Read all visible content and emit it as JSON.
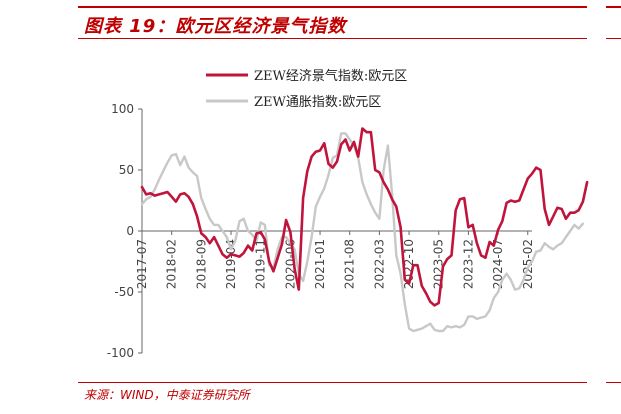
{
  "header": {
    "title": "图表 19：欧元区经济景气指数"
  },
  "footer": {
    "source": "来源：WIND，中泰证券研究所"
  },
  "colors": {
    "brand": "#c00000",
    "series_economic": "#c0143c",
    "series_inflation": "#c8c8c8"
  },
  "chart_data": {
    "type": "line",
    "title": "",
    "xlabel": "",
    "ylabel": "",
    "ylim": [
      -100,
      100
    ],
    "yticks": [
      100,
      50,
      0,
      -50,
      -100
    ],
    "xticks": [
      "2017-07",
      "2018-02",
      "2018-09",
      "2019-04",
      "2019-11",
      "2020-06",
      "2021-01",
      "2021-08",
      "2022-03",
      "2022-10",
      "2023-05",
      "2023-12",
      "2024-07",
      "2025-02"
    ],
    "x_start": "2017-07",
    "x_end": "2025-03",
    "grid": false,
    "legend": "top",
    "series": [
      {
        "name": "ZEW经济景气指数:欧元区",
        "color": "#c0143c",
        "values": [
          36,
          30,
          31,
          29,
          30,
          31,
          32,
          28,
          24,
          30,
          31,
          28,
          22,
          12,
          -2,
          -5,
          -10,
          -5,
          -12,
          -19,
          -22,
          -19,
          -20,
          -21,
          -18,
          -12,
          -16,
          -2,
          -1,
          -7,
          -25,
          -33,
          -22,
          -11,
          9,
          -1,
          -31,
          -48,
          27,
          49,
          61,
          65,
          66,
          72,
          55,
          52,
          57,
          71,
          75,
          66,
          73,
          61,
          84,
          81,
          81,
          50,
          48,
          40,
          34,
          26,
          20,
          3,
          -40,
          -43,
          -28,
          -28,
          -45,
          -51,
          -58,
          -61,
          -59,
          -29,
          -23,
          -20,
          17,
          26,
          27,
          3,
          5,
          -10,
          -20,
          -22,
          -9,
          -12,
          1,
          8,
          23,
          25,
          24,
          25,
          34,
          43,
          47,
          52,
          50,
          18,
          5,
          12,
          19,
          18,
          10,
          15,
          15,
          17,
          24,
          40
        ]
      },
      {
        "name": "ZEW通胀指数:欧元区",
        "color": "#c8c8c8",
        "values": [
          22,
          26,
          28,
          34,
          42,
          49,
          56,
          62,
          63,
          54,
          61,
          52,
          48,
          45,
          27,
          18,
          10,
          5,
          5,
          0,
          -5,
          -15,
          -8,
          8,
          10,
          0,
          -3,
          -8,
          7,
          5,
          -28,
          -30,
          -15,
          -5,
          -5,
          -10,
          -15,
          -35,
          -41,
          -25,
          -5,
          20,
          28,
          35,
          46,
          60,
          62,
          80,
          80,
          75,
          70,
          60,
          40,
          30,
          22,
          15,
          10,
          50,
          70,
          30,
          -20,
          -35,
          -60,
          -80,
          -82,
          -81,
          -80,
          -78,
          -76,
          -81,
          -82,
          -82,
          -78,
          -79,
          -78,
          -79,
          -77,
          -70,
          -70,
          -72,
          -71,
          -70,
          -65,
          -55,
          -50,
          -40,
          -35,
          -40,
          -48,
          -47,
          -40,
          -30,
          -25,
          -17,
          -16,
          -10,
          -13,
          -15,
          -12,
          -10,
          -5,
          0,
          5,
          2,
          6
        ]
      }
    ]
  }
}
